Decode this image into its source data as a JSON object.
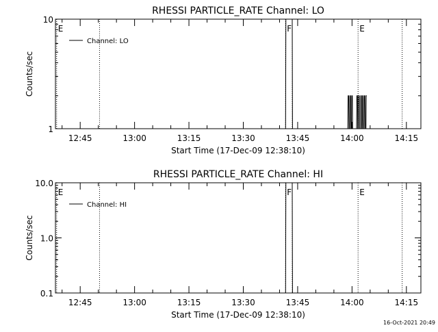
{
  "colors": {
    "background": "#ffffff",
    "foreground": "#000000"
  },
  "chart_data": [
    {
      "type": "line",
      "title": "RHESSI PARTICLE_RATE Channel: LO",
      "xlabel": "Start Time (17-Dec-09 12:38:10)",
      "ylabel": "Counts/sec",
      "yscale": "log",
      "ylim": [
        1,
        10
      ],
      "y_ticks": [
        {
          "value": 1,
          "label": "1"
        },
        {
          "value": 10,
          "label": "10"
        }
      ],
      "x_ticks": [
        "12:45",
        "13:00",
        "13:15",
        "13:30",
        "13:45",
        "14:00",
        "14:15"
      ],
      "legend": {
        "placement": "top-left",
        "entries": [
          "Channel: LO"
        ]
      },
      "markers": [
        {
          "time": "12:38:30",
          "label": "E"
        },
        {
          "time": "12:50:20",
          "label": ""
        },
        {
          "time": "13:41:40",
          "label": "F"
        },
        {
          "time": "13:43:30",
          "label": ""
        },
        {
          "time": "14:01:40",
          "label": "E"
        },
        {
          "time": "14:13:50",
          "label": ""
        }
      ],
      "series": [
        {
          "name": "Channel: LO",
          "x": [
            "13:41:40",
            "13:41:45",
            "13:43:30",
            "13:43:35",
            "13:58:50",
            "13:58:55",
            "13:59:05",
            "13:59:10",
            "13:59:20",
            "13:59:25",
            "13:59:35",
            "13:59:40",
            "13:59:50",
            "13:59:55",
            "14:00:05",
            "14:00:10",
            "14:01:15",
            "14:01:20",
            "14:01:30",
            "14:01:35",
            "14:01:45",
            "14:01:50",
            "14:02:00",
            "14:02:05",
            "14:02:20",
            "14:02:25",
            "14:02:35",
            "14:02:40",
            "14:02:50",
            "14:02:55",
            "14:03:05",
            "14:03:10",
            "14:03:20",
            "14:03:25",
            "14:03:35",
            "14:03:40",
            "14:03:50",
            "14:03:55",
            "14:04:05"
          ],
          "values": [
            1,
            10,
            10,
            1,
            1,
            2,
            2,
            1,
            1,
            2,
            2,
            1,
            1,
            2,
            2,
            1,
            1,
            2,
            2,
            1,
            1,
            2,
            2,
            1,
            1,
            2,
            2,
            1,
            1,
            2,
            2,
            1,
            1,
            2,
            2,
            1,
            1,
            2,
            2
          ]
        }
      ]
    },
    {
      "type": "line",
      "title": "RHESSI PARTICLE_RATE Channel: HI",
      "xlabel": "Start Time (17-Dec-09 12:38:10)",
      "ylabel": "Counts/sec",
      "yscale": "log",
      "ylim": [
        0.1,
        10
      ],
      "y_ticks": [
        {
          "value": 0.1,
          "label": "0.1"
        },
        {
          "value": 1,
          "label": "1.0"
        },
        {
          "value": 10,
          "label": "10.0"
        }
      ],
      "x_ticks": [
        "12:45",
        "13:00",
        "13:15",
        "13:30",
        "13:45",
        "14:00",
        "14:15"
      ],
      "legend": {
        "placement": "top-left",
        "entries": [
          "Channel: HI"
        ]
      },
      "markers": [
        {
          "time": "12:38:30",
          "label": "E"
        },
        {
          "time": "12:50:20",
          "label": ""
        },
        {
          "time": "13:41:40",
          "label": "F"
        },
        {
          "time": "13:43:30",
          "label": ""
        },
        {
          "time": "14:01:40",
          "label": "E"
        },
        {
          "time": "14:13:50",
          "label": ""
        }
      ],
      "series": [
        {
          "name": "Channel: HI",
          "x": [
            "13:41:40",
            "13:41:45",
            "13:43:30",
            "13:43:35"
          ],
          "values": [
            0.1,
            10,
            10,
            0.1
          ]
        }
      ]
    }
  ],
  "footer": {
    "timestamp": "16-Oct-2021 20:49"
  }
}
